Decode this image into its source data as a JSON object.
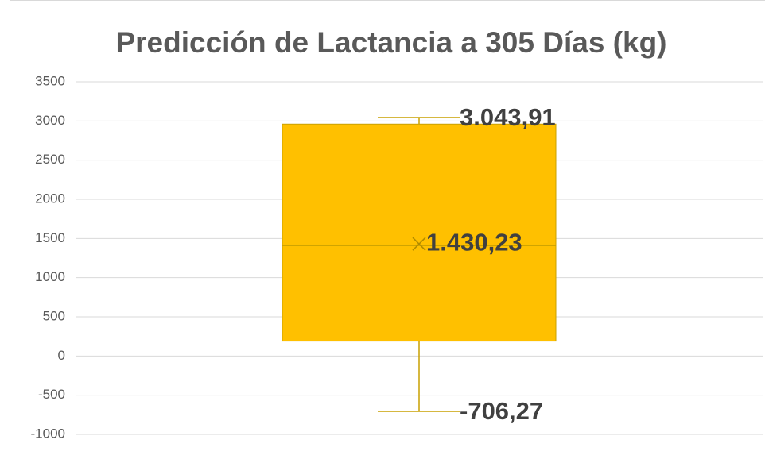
{
  "chart_data": {
    "type": "box",
    "title": "Predicción de Lactancia a 305 Días (kg)",
    "min": -706.27,
    "q1": 190,
    "median": 1410,
    "q3": 2960,
    "max": 3043.91,
    "mean": 1430.23,
    "value_labels": {
      "max": "3.043,91",
      "mean": "1.430,23",
      "min": "-706,27"
    },
    "color": "#FFC000",
    "line_color": "#C9A000",
    "ylim": [
      -1000,
      3500
    ],
    "yticks": [
      -1000,
      -500,
      0,
      500,
      1000,
      1500,
      2000,
      2500,
      3000,
      3500
    ],
    "grid": true
  }
}
